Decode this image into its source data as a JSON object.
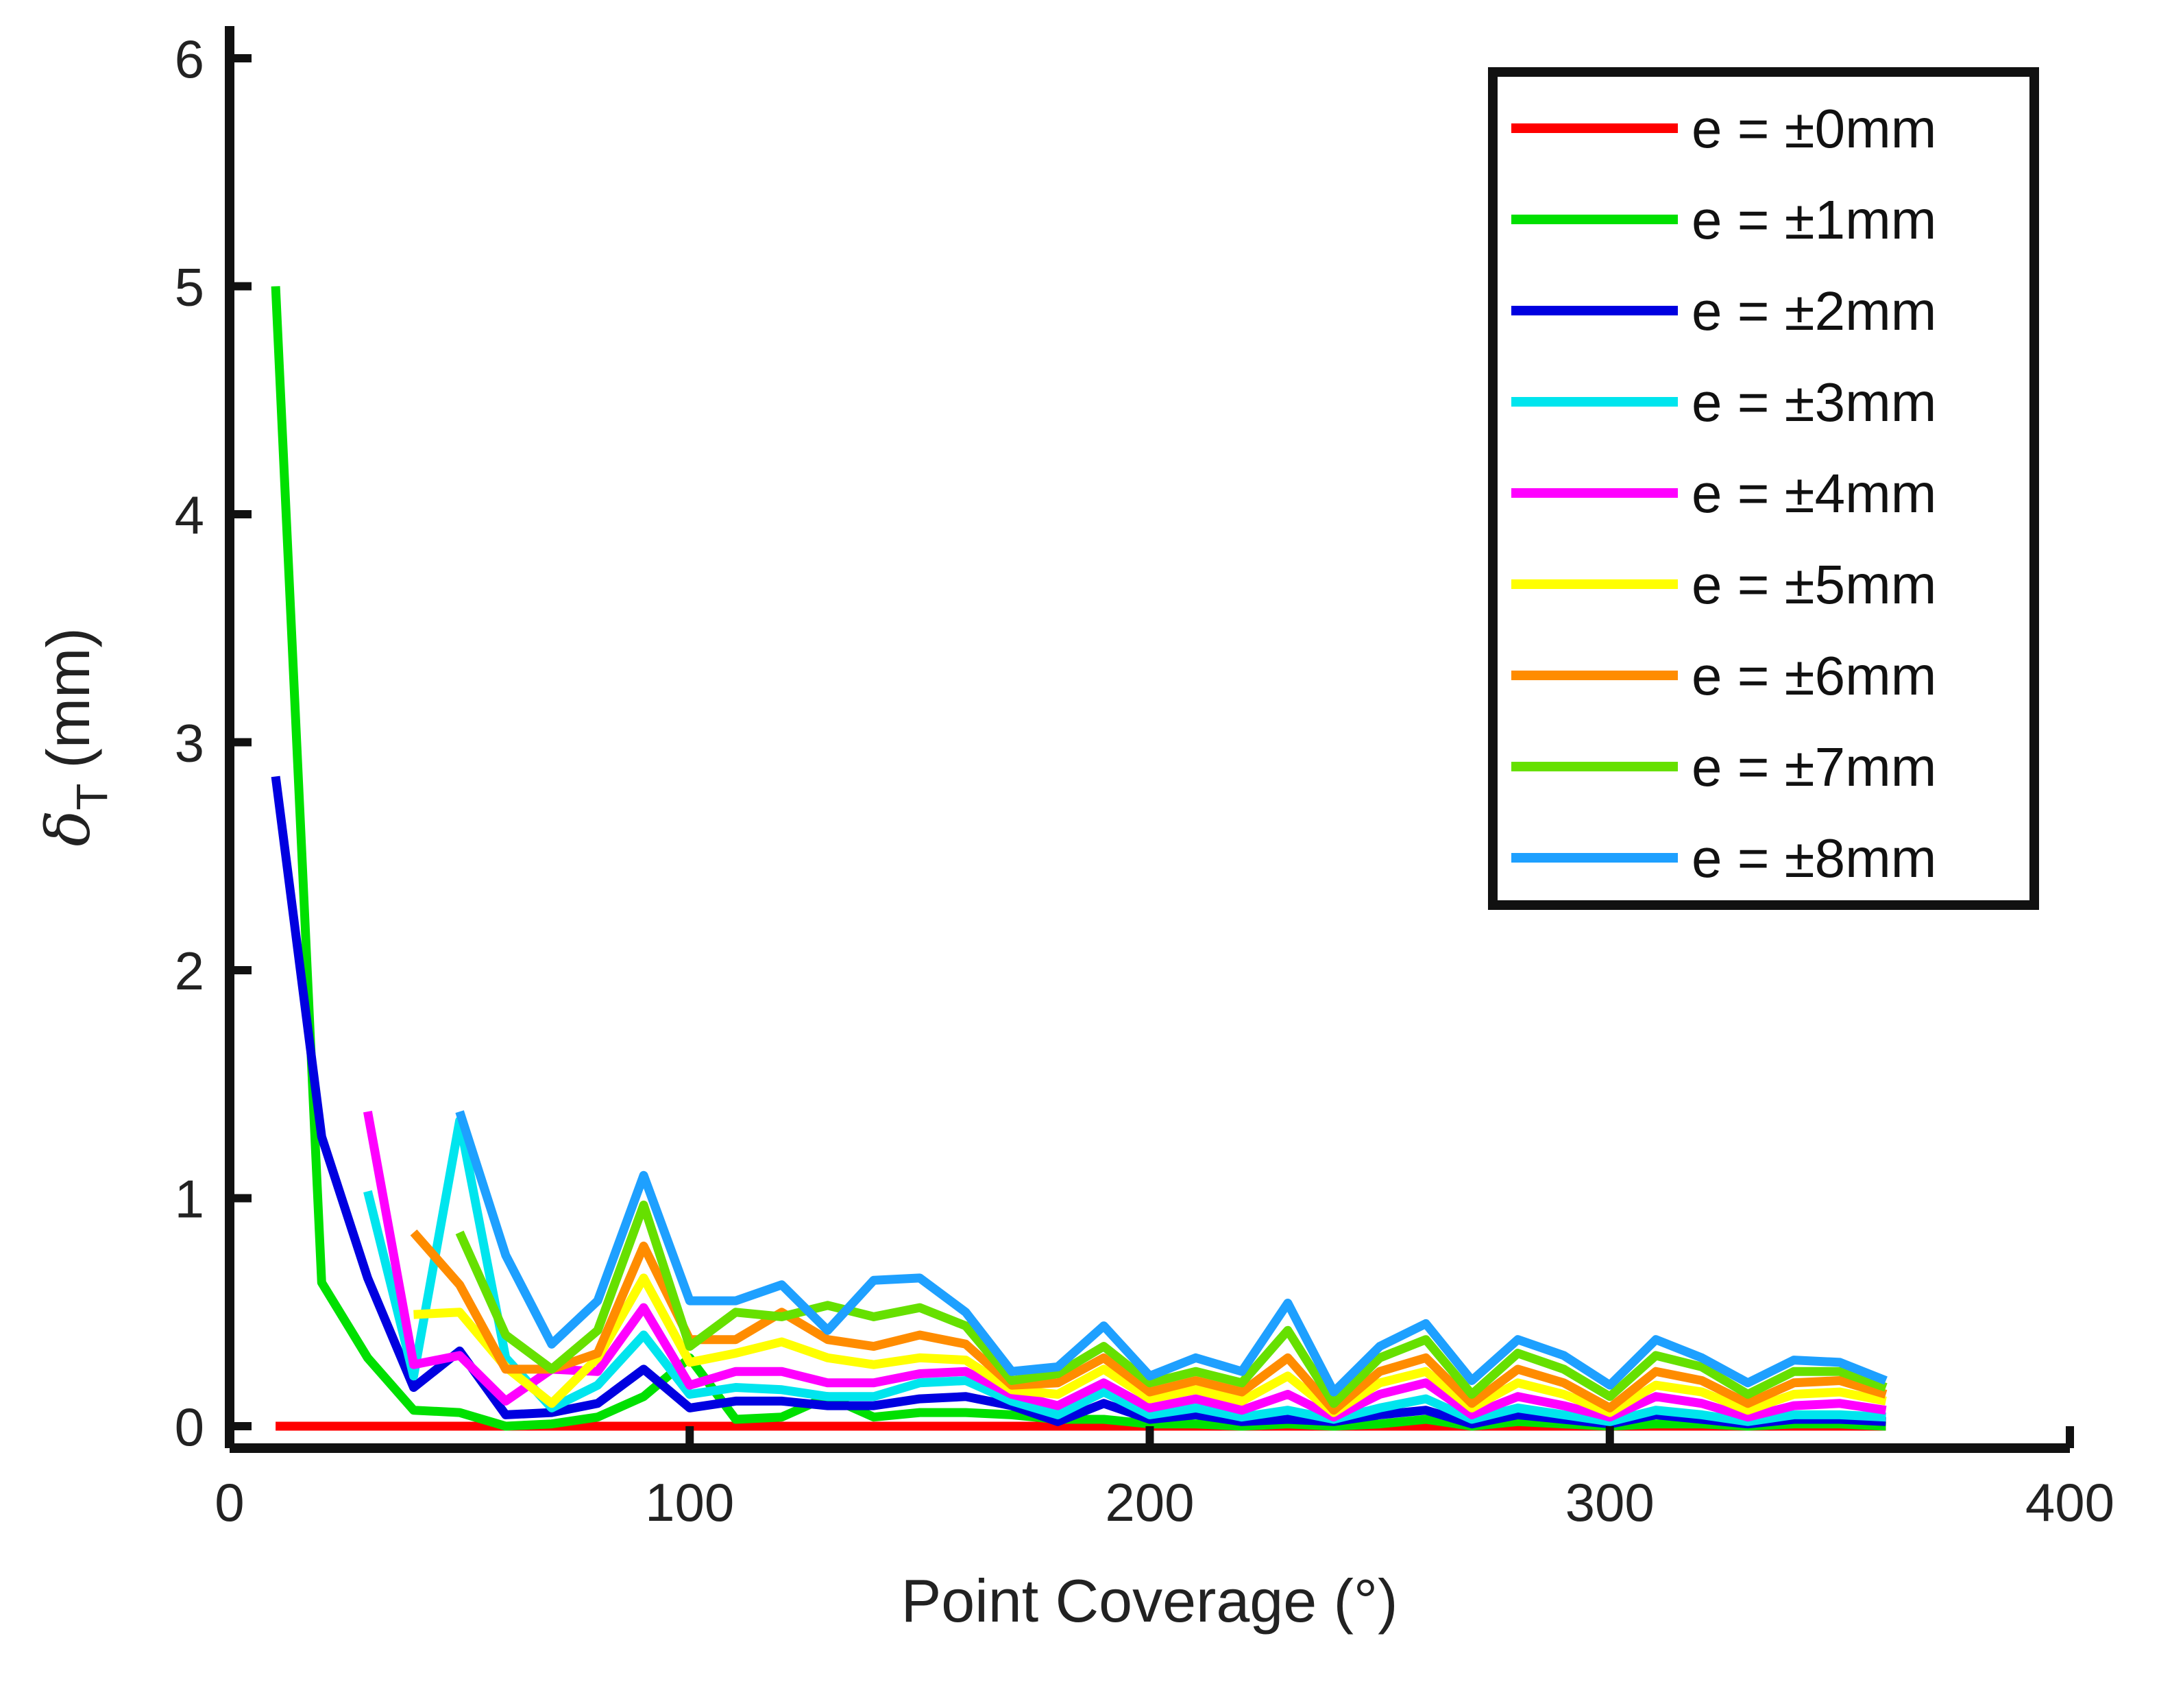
{
  "chart_data": {
    "type": "line",
    "title": "",
    "xlabel": "Point Coverage (°)",
    "ylabel_symbol": "δ",
    "ylabel_subscript": "T",
    "ylabel_unit": "(mm)",
    "xlim": [
      0,
      400
    ],
    "ylim": [
      -0.1,
      6.2
    ],
    "xticks": [
      0,
      100,
      200,
      300,
      400
    ],
    "yticks": [
      0,
      1,
      2,
      3,
      4,
      5,
      6
    ],
    "grid": false,
    "legend_position": "top-right",
    "series": [
      {
        "name": "e = ±0mm",
        "color": "#ff0000",
        "x": [
          10,
          360
        ],
        "y": [
          0,
          0
        ]
      },
      {
        "name": "e = ±1mm",
        "color": "#00e000",
        "x": [
          10,
          20,
          30,
          40,
          50,
          60,
          70,
          80,
          90,
          100,
          110,
          120,
          130,
          140,
          150,
          160,
          170,
          180,
          190,
          200,
          210,
          220,
          230,
          240,
          250,
          260,
          270,
          280,
          290,
          300,
          310,
          320,
          330,
          340,
          350,
          360
        ],
        "y": [
          5.0,
          0.63,
          0.3,
          0.07,
          0.06,
          0.0,
          0.01,
          0.04,
          0.13,
          0.3,
          0.03,
          0.04,
          0.13,
          0.04,
          0.06,
          0.06,
          0.05,
          0.03,
          0.03,
          0.01,
          0.01,
          0.0,
          0.01,
          0.0,
          0.01,
          0.03,
          0.0,
          0.02,
          0.01,
          0.0,
          0.01,
          0.01,
          0.0,
          0.01,
          0.01,
          0.0
        ]
      },
      {
        "name": "e = ±2mm",
        "color": "#0000e0",
        "x": [
          10,
          20,
          30,
          40,
          50,
          60,
          70,
          80,
          90,
          100,
          110,
          120,
          130,
          140,
          150,
          160,
          170,
          180,
          190,
          200,
          210,
          220,
          230,
          240,
          250,
          260,
          270,
          280,
          290,
          300,
          310,
          320,
          330,
          340,
          350,
          360
        ],
        "y": [
          2.85,
          1.27,
          0.65,
          0.17,
          0.33,
          0.05,
          0.06,
          0.1,
          0.25,
          0.08,
          0.11,
          0.11,
          0.09,
          0.09,
          0.12,
          0.13,
          0.09,
          0.02,
          0.1,
          0.03,
          0.05,
          0.02,
          0.03,
          0.02,
          0.05,
          0.07,
          0.01,
          0.05,
          0.03,
          0.01,
          0.05,
          0.03,
          0.01,
          0.03,
          0.03,
          0.02
        ]
      },
      {
        "name": "e = ±3mm",
        "color": "#00e5ee",
        "x": [
          30,
          40,
          50,
          60,
          70,
          80,
          90,
          100,
          110,
          120,
          130,
          140,
          150,
          160,
          170,
          180,
          190,
          200,
          210,
          220,
          230,
          240,
          250,
          260,
          270,
          280,
          290,
          300,
          310,
          320,
          330,
          340,
          350,
          360
        ],
        "y": [
          1.03,
          0.22,
          1.34,
          0.3,
          0.08,
          0.18,
          0.4,
          0.14,
          0.17,
          0.16,
          0.13,
          0.13,
          0.19,
          0.2,
          0.11,
          0.05,
          0.15,
          0.05,
          0.08,
          0.04,
          0.07,
          0.03,
          0.08,
          0.12,
          0.03,
          0.08,
          0.05,
          0.02,
          0.07,
          0.05,
          0.02,
          0.05,
          0.05,
          0.04
        ]
      },
      {
        "name": "e = ±4mm",
        "color": "#ff00ff",
        "x": [
          30,
          40,
          50,
          60,
          70,
          80,
          90,
          100,
          110,
          120,
          130,
          140,
          150,
          160,
          170,
          180,
          190,
          200,
          210,
          220,
          230,
          240,
          250,
          260,
          270,
          280,
          290,
          300,
          310,
          320,
          330,
          340,
          350,
          360
        ],
        "y": [
          1.38,
          0.27,
          0.31,
          0.11,
          0.25,
          0.24,
          0.52,
          0.18,
          0.24,
          0.24,
          0.19,
          0.19,
          0.23,
          0.24,
          0.14,
          0.09,
          0.19,
          0.08,
          0.12,
          0.07,
          0.14,
          0.04,
          0.14,
          0.19,
          0.05,
          0.13,
          0.09,
          0.04,
          0.13,
          0.1,
          0.04,
          0.09,
          0.1,
          0.07
        ]
      },
      {
        "name": "e = ±5mm",
        "color": "#ffff00",
        "x": [
          40,
          50,
          60,
          70,
          80,
          90,
          100,
          110,
          120,
          130,
          140,
          150,
          160,
          170,
          180,
          190,
          200,
          210,
          220,
          230,
          240,
          250,
          260,
          270,
          280,
          290,
          300,
          310,
          320,
          330,
          340,
          350,
          360
        ],
        "y": [
          0.49,
          0.5,
          0.26,
          0.1,
          0.3,
          0.65,
          0.28,
          0.32,
          0.37,
          0.3,
          0.27,
          0.3,
          0.29,
          0.16,
          0.14,
          0.25,
          0.12,
          0.16,
          0.11,
          0.22,
          0.06,
          0.19,
          0.24,
          0.08,
          0.19,
          0.14,
          0.06,
          0.18,
          0.15,
          0.07,
          0.14,
          0.15,
          0.11
        ]
      },
      {
        "name": "e = ±6mm",
        "color": "#ff8c00",
        "x": [
          40,
          50,
          60,
          70,
          80,
          90,
          100,
          110,
          120,
          130,
          140,
          150,
          160,
          170,
          180,
          190,
          200,
          210,
          220,
          230,
          240,
          250,
          260,
          270,
          280,
          290,
          300,
          310,
          320,
          330,
          340,
          350,
          360
        ],
        "y": [
          0.85,
          0.62,
          0.25,
          0.25,
          0.32,
          0.79,
          0.38,
          0.38,
          0.5,
          0.38,
          0.35,
          0.4,
          0.36,
          0.18,
          0.19,
          0.3,
          0.15,
          0.2,
          0.15,
          0.3,
          0.07,
          0.24,
          0.3,
          0.1,
          0.25,
          0.19,
          0.08,
          0.24,
          0.2,
          0.1,
          0.19,
          0.2,
          0.14
        ]
      },
      {
        "name": "e = ±7mm",
        "color": "#66e000",
        "x": [
          50,
          60,
          70,
          80,
          90,
          100,
          110,
          120,
          130,
          140,
          150,
          160,
          170,
          180,
          190,
          200,
          210,
          220,
          230,
          240,
          250,
          260,
          270,
          280,
          290,
          300,
          310,
          320,
          330,
          340,
          350,
          360
        ],
        "y": [
          0.85,
          0.4,
          0.25,
          0.42,
          0.97,
          0.35,
          0.5,
          0.48,
          0.53,
          0.48,
          0.52,
          0.44,
          0.2,
          0.23,
          0.35,
          0.19,
          0.24,
          0.19,
          0.42,
          0.1,
          0.3,
          0.38,
          0.14,
          0.32,
          0.25,
          0.13,
          0.31,
          0.26,
          0.14,
          0.24,
          0.24,
          0.17
        ]
      },
      {
        "name": "e = ±8mm",
        "color": "#1ea0ff",
        "x": [
          50,
          60,
          70,
          80,
          90,
          100,
          110,
          120,
          130,
          140,
          150,
          160,
          170,
          180,
          190,
          200,
          210,
          220,
          230,
          240,
          250,
          260,
          270,
          280,
          290,
          300,
          310,
          320,
          330,
          340,
          350,
          360
        ],
        "y": [
          1.38,
          0.75,
          0.36,
          0.55,
          1.1,
          0.55,
          0.55,
          0.62,
          0.42,
          0.64,
          0.65,
          0.5,
          0.24,
          0.26,
          0.44,
          0.22,
          0.3,
          0.24,
          0.54,
          0.15,
          0.35,
          0.45,
          0.2,
          0.38,
          0.31,
          0.18,
          0.38,
          0.3,
          0.19,
          0.29,
          0.28,
          0.2
        ]
      }
    ]
  }
}
